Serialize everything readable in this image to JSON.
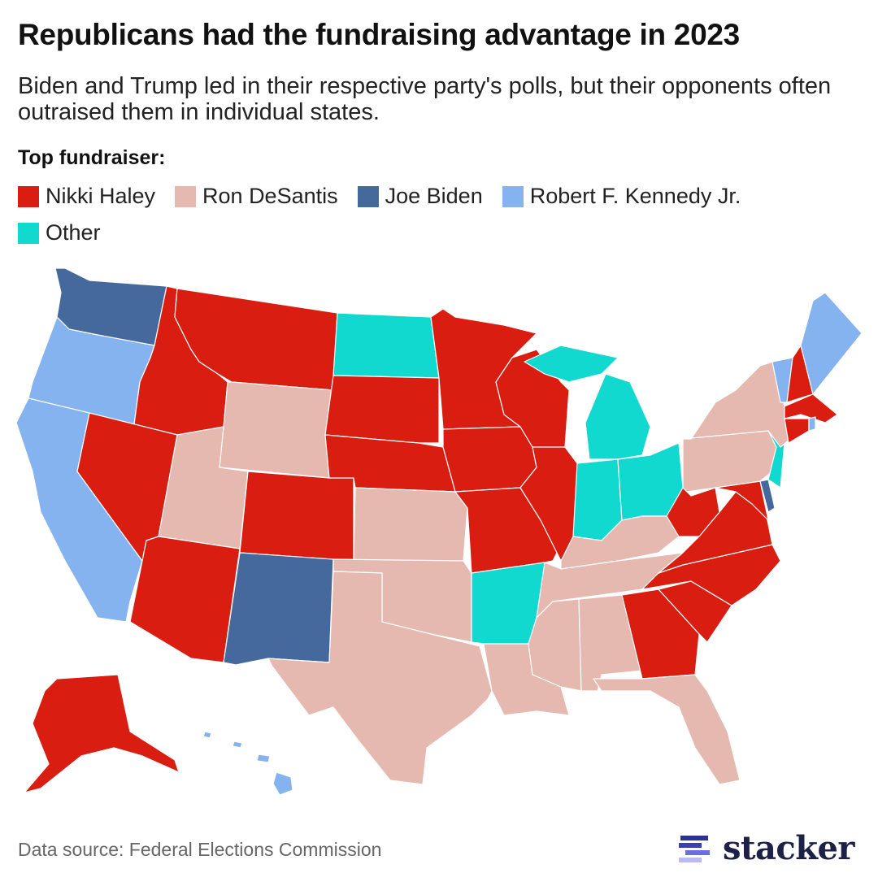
{
  "title": "Republicans had the fundraising advantage in 2023",
  "subtitle": "Biden and Trump led in their respective party's polls, but their opponents often outraised them in individual states.",
  "legend": {
    "title": "Top fundraiser:",
    "items": [
      {
        "key": "haley",
        "label": "Nikki Haley",
        "color": "#d91d10"
      },
      {
        "key": "desantis",
        "label": "Ron DeSantis",
        "color": "#e5b8b0"
      },
      {
        "key": "biden",
        "label": "Joe Biden",
        "color": "#45699c"
      },
      {
        "key": "rfk",
        "label": "Robert F. Kennedy Jr.",
        "color": "#84b3f0"
      },
      {
        "key": "other",
        "label": "Other",
        "color": "#12d9d0"
      }
    ]
  },
  "states": {
    "WA": "biden",
    "OR": "rfk",
    "CA": "rfk",
    "ID": "haley",
    "NV": "haley",
    "MT": "haley",
    "WY": "desantis",
    "UT": "desantis",
    "AZ": "haley",
    "CO": "haley",
    "NM": "biden",
    "ND": "other",
    "SD": "haley",
    "NE": "haley",
    "KS": "desantis",
    "OK": "desantis",
    "TX": "desantis",
    "MN": "haley",
    "IA": "haley",
    "MO": "haley",
    "AR": "other",
    "LA": "desantis",
    "WI": "haley",
    "IL": "haley",
    "MI": "other",
    "IN": "other",
    "OH": "other",
    "KY": "desantis",
    "TN": "desantis",
    "MS": "desantis",
    "AL": "desantis",
    "GA": "haley",
    "FL": "desantis",
    "SC": "haley",
    "NC": "haley",
    "VA": "haley",
    "WV": "haley",
    "MD": "haley",
    "DE": "biden",
    "PA": "desantis",
    "NJ": "other",
    "NY": "desantis",
    "VT": "rfk",
    "NH": "haley",
    "ME": "rfk",
    "MA": "haley",
    "CT": "haley",
    "RI": "rfk",
    "AK": "haley",
    "HI": "rfk"
  },
  "source": "Data source: Federal Elections Commission",
  "logo": "stacker"
}
